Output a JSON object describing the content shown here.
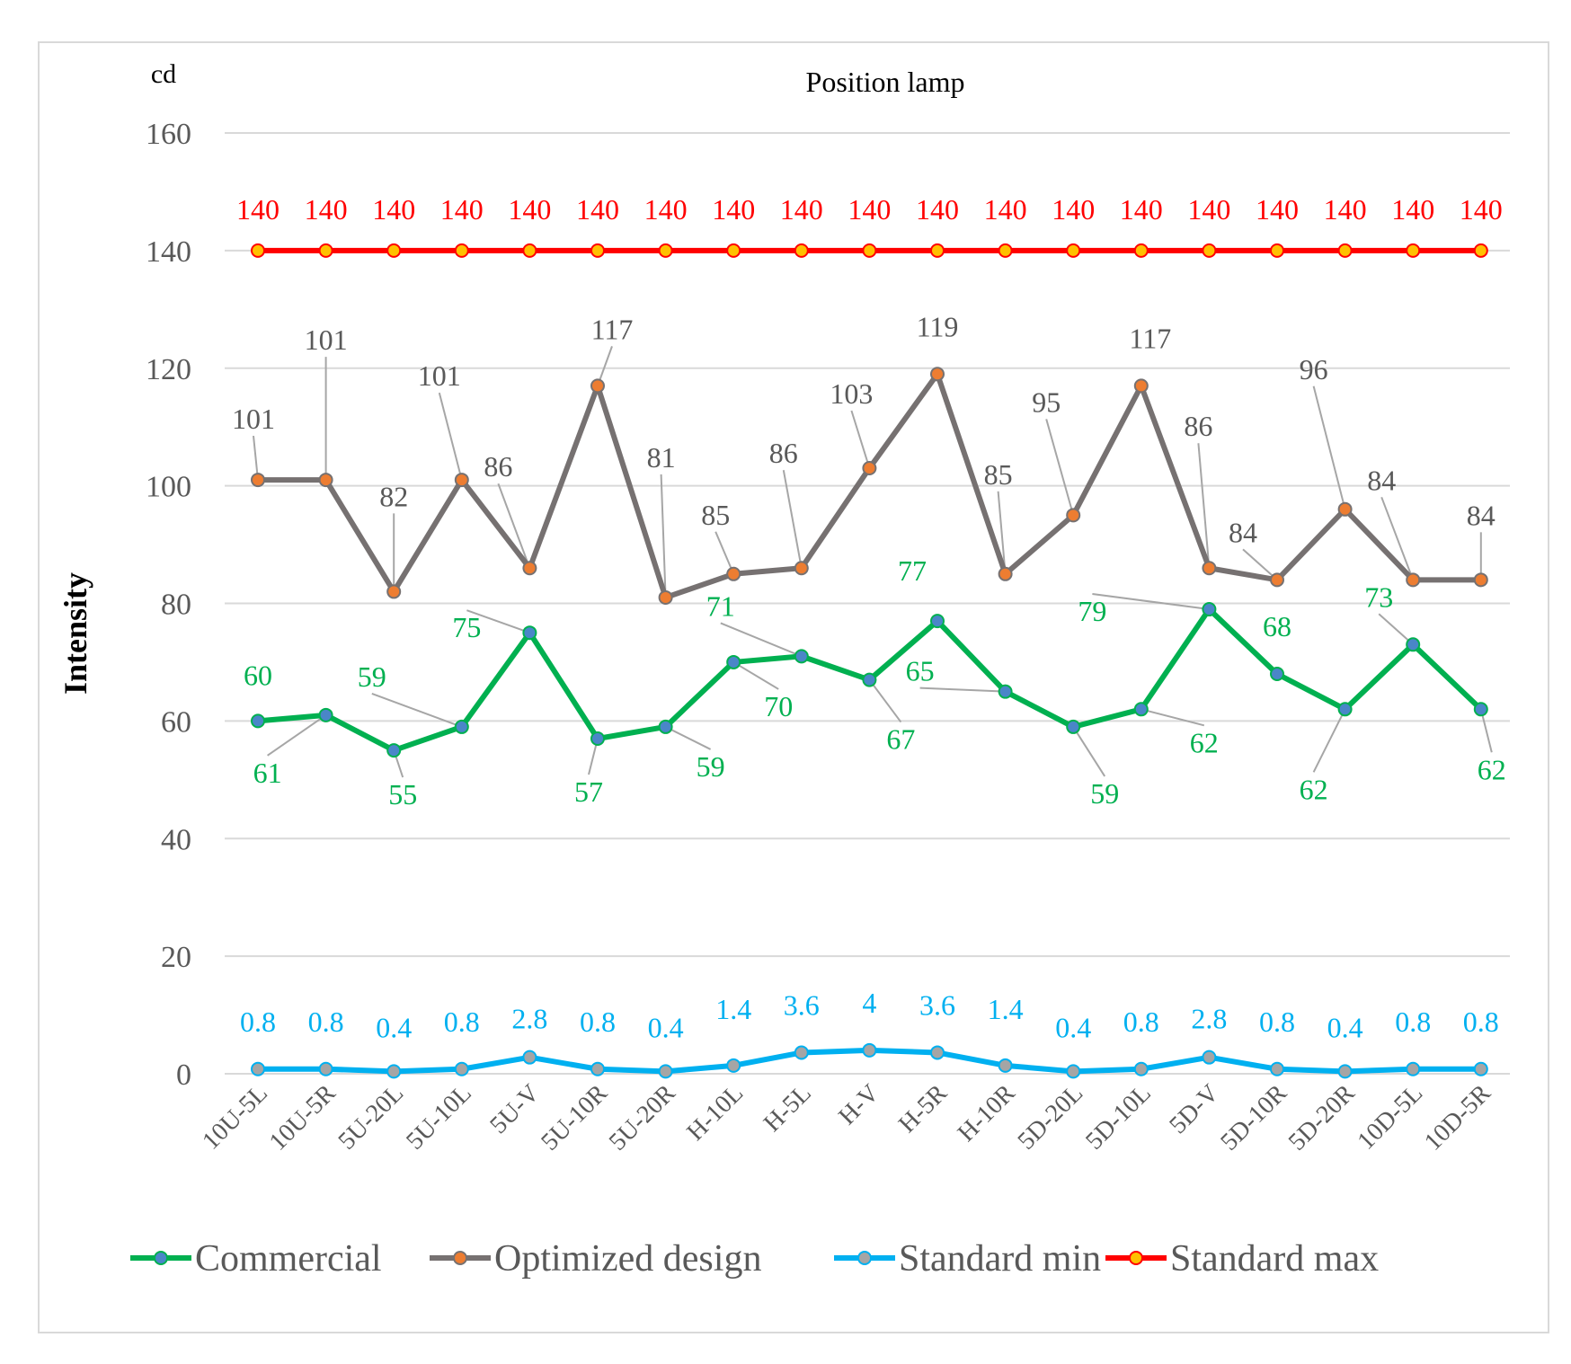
{
  "chart_data": {
    "type": "line",
    "title": "Position lamp",
    "unit_label": "cd",
    "xlabel": "",
    "ylabel": "Intensity",
    "ylim": [
      0,
      160
    ],
    "yticks": [
      0,
      20,
      40,
      60,
      80,
      100,
      120,
      140,
      160
    ],
    "grid": true,
    "legend_position": "bottom",
    "categories": [
      "10U-5L",
      "10U-5R",
      "5U-20L",
      "5U-10L",
      "5U-V",
      "5U-10R",
      "5U-20R",
      "H-10L",
      "H-5L",
      "H-V",
      "H-5R",
      "H-10R",
      "5D-20L",
      "5D-10L",
      "5D-V",
      "5D-10R",
      "5D-20R",
      "10D-5L",
      "10D-5R"
    ],
    "series": [
      {
        "name": "Commercial",
        "line_color": "#00b050",
        "marker_color": "#4a86c8",
        "label_color": "#00b050",
        "values": [
          60,
          61,
          55,
          59,
          75,
          57,
          59,
          70,
          71,
          67,
          77,
          65,
          59,
          62,
          79,
          68,
          62,
          73,
          62
        ]
      },
      {
        "name": "Optimized design",
        "line_color": "#767171",
        "marker_color": "#ed7d31",
        "label_color": "#595959",
        "values": [
          101,
          101,
          82,
          101,
          86,
          117,
          81,
          85,
          86,
          103,
          119,
          85,
          95,
          117,
          86,
          84,
          96,
          84,
          84
        ]
      },
      {
        "name": "Standard min",
        "line_color": "#00b0f0",
        "marker_color": "#a5a5a5",
        "label_color": "#00b0f0",
        "values": [
          0.8,
          0.8,
          0.4,
          0.8,
          2.8,
          0.8,
          0.4,
          1.4,
          3.6,
          4,
          3.6,
          1.4,
          0.4,
          0.8,
          2.8,
          0.8,
          0.4,
          0.8,
          0.8
        ]
      },
      {
        "name": "Standard max",
        "line_color": "#ff0000",
        "marker_color": "#ffc000",
        "label_color": "#ff0000",
        "values": [
          140,
          140,
          140,
          140,
          140,
          140,
          140,
          140,
          140,
          140,
          140,
          140,
          140,
          140,
          140,
          140,
          140,
          140,
          140
        ]
      }
    ]
  }
}
